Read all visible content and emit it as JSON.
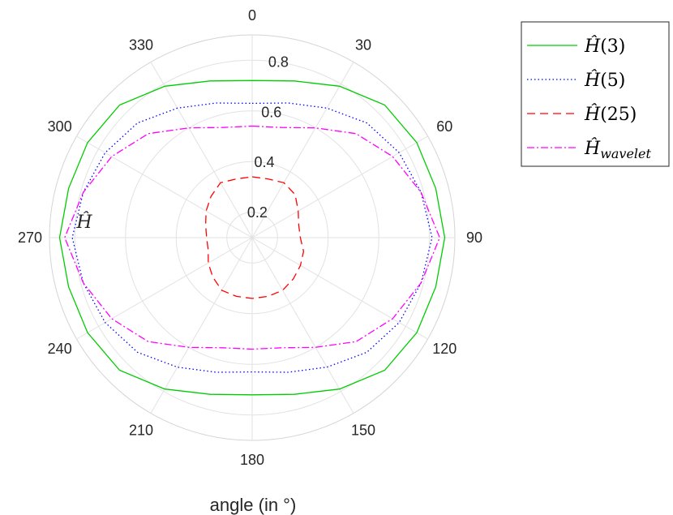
{
  "chart_data": {
    "type": "polar-line",
    "title": "",
    "xlabel": "angle (in °)",
    "theta_ticks": [
      "0",
      "30",
      "60",
      "90",
      "120",
      "150",
      "180",
      "210",
      "240",
      "270",
      "300",
      "330"
    ],
    "theta_zero": "top",
    "theta_direction": "clockwise",
    "r_ticks": [
      "0.2",
      "0.4",
      "0.6",
      "0.8"
    ],
    "rlim": [
      0.1,
      0.9
    ],
    "r_axis_label": "Ĥ",
    "grid": true,
    "legend_position": "outside-top-right",
    "theta_deg": [
      0,
      15,
      30,
      45,
      60,
      75,
      90,
      105,
      120,
      135,
      150,
      165,
      180,
      195,
      210,
      225,
      240,
      255,
      270,
      285,
      300,
      315,
      330,
      345
    ],
    "series": [
      {
        "name": "Ĥ(3)",
        "legend_base": "Ĥ",
        "legend_arg": "(3)",
        "color": "#00cc00",
        "dash": "",
        "r": [
          0.72,
          0.74,
          0.79,
          0.84,
          0.85,
          0.85,
          0.86,
          0.85,
          0.85,
          0.84,
          0.79,
          0.74,
          0.72,
          0.74,
          0.79,
          0.84,
          0.85,
          0.85,
          0.86,
          0.85,
          0.85,
          0.84,
          0.79,
          0.74
        ]
      },
      {
        "name": "Ĥ(5)",
        "legend_base": "Ĥ",
        "legend_arg": "(5)",
        "color": "#0000ff",
        "dash": "1.5,3",
        "r": [
          0.63,
          0.65,
          0.69,
          0.74,
          0.77,
          0.79,
          0.81,
          0.79,
          0.77,
          0.74,
          0.69,
          0.65,
          0.63,
          0.65,
          0.69,
          0.74,
          0.77,
          0.79,
          0.81,
          0.79,
          0.77,
          0.74,
          0.69,
          0.65
        ]
      },
      {
        "name": "Ĥ(25)",
        "legend_base": "Ĥ",
        "legend_arg": "(25)",
        "color": "#ff0000",
        "dash": "10,6",
        "r": [
          0.34,
          0.34,
          0.35,
          0.34,
          0.31,
          0.29,
          0.29,
          0.31,
          0.32,
          0.33,
          0.34,
          0.34,
          0.34,
          0.34,
          0.34,
          0.32,
          0.3,
          0.28,
          0.28,
          0.29,
          0.31,
          0.33,
          0.35,
          0.34
        ]
      },
      {
        "name": "Ĥwavelet",
        "legend_base": "Ĥ",
        "legend_arg": "wavelet",
        "color": "#ff00ff",
        "dash": "9,3,2,3",
        "r": [
          0.54,
          0.55,
          0.6,
          0.68,
          0.74,
          0.79,
          0.84,
          0.79,
          0.74,
          0.68,
          0.6,
          0.55,
          0.54,
          0.55,
          0.6,
          0.68,
          0.74,
          0.79,
          0.84,
          0.79,
          0.74,
          0.68,
          0.6,
          0.55
        ]
      }
    ]
  }
}
